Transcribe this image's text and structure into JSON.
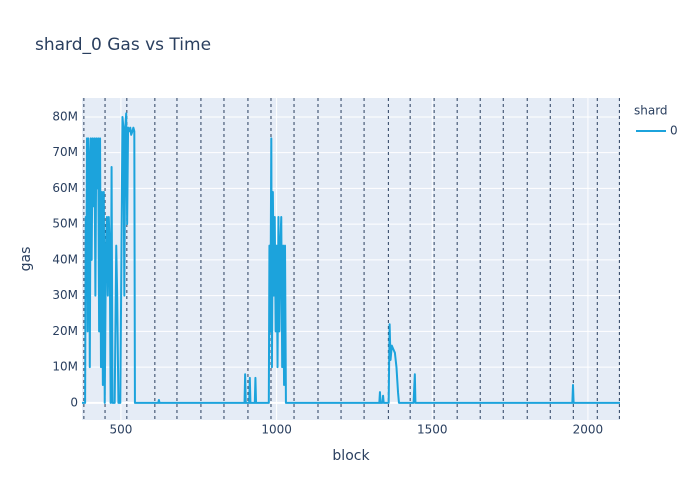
{
  "chart_data": {
    "type": "line",
    "title": "shard_0 Gas vs Time",
    "x_label": "block",
    "y_label": "gas",
    "legend_title": "shard",
    "legend_position": "right",
    "grid": true,
    "xlim": [
      375,
      2103
    ],
    "ylim": [
      -4800000,
      85300000
    ],
    "xticks": [
      500,
      1000,
      1500,
      2000
    ],
    "yticks": [
      {
        "value": 0,
        "label": "0"
      },
      {
        "value": 10000000,
        "label": "10M"
      },
      {
        "value": 20000000,
        "label": "20M"
      },
      {
        "value": 30000000,
        "label": "30M"
      },
      {
        "value": 40000000,
        "label": "40M"
      },
      {
        "value": 50000000,
        "label": "50M"
      },
      {
        "value": 60000000,
        "label": "60M"
      },
      {
        "value": 70000000,
        "label": "70M"
      },
      {
        "value": 80000000,
        "label": "80M"
      }
    ],
    "vlines": [
      381,
      449,
      519,
      609,
      680,
      757,
      831,
      908,
      982,
      1056,
      1133,
      1207,
      1281,
      1359,
      1429,
      1506,
      1580,
      1654,
      1728,
      1805,
      1879,
      1953,
      2030,
      2101
    ],
    "vline_color": "#2a3f5f",
    "series": [
      {
        "name": "0",
        "color": "#1ca3dc",
        "x": [
          375,
          385,
          387,
          389,
          391,
          393,
          395,
          398,
          400,
          403,
          406,
          409,
          412,
          415,
          418,
          421,
          424,
          427,
          430,
          433,
          436,
          439,
          442,
          445,
          448,
          452,
          455,
          458,
          461,
          464,
          467,
          470,
          473,
          480,
          485,
          488,
          492,
          498,
          505,
          508,
          511,
          514,
          517,
          520,
          523,
          527,
          530,
          533,
          537,
          540,
          543,
          545,
          550,
          620,
          622,
          624,
          897,
          899,
          901,
          912,
          914,
          916,
          930,
          932,
          934,
          975,
          977,
          980,
          983,
          985,
          988,
          991,
          994,
          997,
          1000,
          1003,
          1006,
          1009,
          1012,
          1015,
          1018,
          1021,
          1024,
          1027,
          1030,
          1330,
          1332,
          1334,
          1340,
          1342,
          1344,
          1360,
          1363,
          1366,
          1370,
          1375,
          1380,
          1385,
          1390,
          1393,
          1440,
          1442,
          1444,
          1446,
          1950,
          1952,
          1954,
          2103
        ],
        "values": [
          0,
          0,
          52000000,
          30000000,
          74000000,
          20000000,
          74000000,
          66000000,
          10000000,
          74000000,
          40000000,
          74000000,
          55000000,
          74000000,
          30000000,
          74000000,
          60000000,
          74000000,
          20000000,
          74000000,
          10000000,
          59000000,
          5000000,
          59000000,
          0,
          44000000,
          52000000,
          30000000,
          52000000,
          44000000,
          0,
          66000000,
          0,
          0,
          44000000,
          30000000,
          0,
          0,
          80000000,
          77000000,
          30000000,
          77000000,
          81000000,
          50000000,
          77000000,
          76000000,
          77000000,
          75000000,
          76000000,
          77000000,
          76000000,
          0,
          0,
          0,
          800000,
          0,
          0,
          8000000,
          0,
          0,
          7000000,
          0,
          0,
          7000000,
          0,
          0,
          44000000,
          20000000,
          74000000,
          10000000,
          59000000,
          30000000,
          52000000,
          20000000,
          44000000,
          10000000,
          52000000,
          20000000,
          44000000,
          52000000,
          10000000,
          44000000,
          5000000,
          44000000,
          0,
          0,
          3000000,
          0,
          0,
          2000000,
          0,
          0,
          22000000,
          12000000,
          16000000,
          15000000,
          14000000,
          10000000,
          3000000,
          0,
          0,
          4000000,
          8000000,
          0,
          0,
          5000000,
          0,
          0
        ]
      }
    ]
  }
}
